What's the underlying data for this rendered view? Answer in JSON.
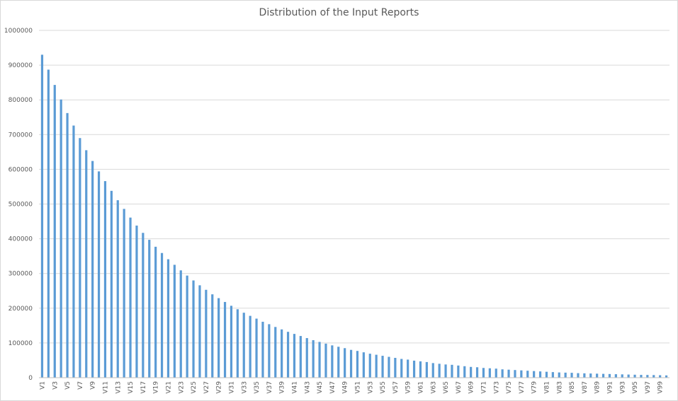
{
  "chart_data": {
    "type": "bar",
    "title": "Distribution of the Input Reports",
    "xlabel": "",
    "ylabel": "",
    "ylim": [
      0,
      1000000
    ],
    "yticks": [
      0,
      100000,
      200000,
      300000,
      400000,
      500000,
      600000,
      700000,
      800000,
      900000,
      1000000
    ],
    "grid": true,
    "legend": "none",
    "bar_color": "#5b9bd5",
    "categories": [
      "V1",
      "V2",
      "V3",
      "V4",
      "V5",
      "V6",
      "V7",
      "V8",
      "V9",
      "V10",
      "V11",
      "V12",
      "V13",
      "V14",
      "V15",
      "V16",
      "V17",
      "V18",
      "V19",
      "V20",
      "V21",
      "V22",
      "V23",
      "V24",
      "V25",
      "V26",
      "V27",
      "V28",
      "V29",
      "V30",
      "V31",
      "V32",
      "V33",
      "V34",
      "V35",
      "V36",
      "V37",
      "V38",
      "V39",
      "V40",
      "V41",
      "V42",
      "V43",
      "V44",
      "V45",
      "V46",
      "V47",
      "V48",
      "V49",
      "V50",
      "V51",
      "V52",
      "V53",
      "V54",
      "V55",
      "V56",
      "V57",
      "V58",
      "V59",
      "V60",
      "V61",
      "V62",
      "V63",
      "V64",
      "V65",
      "V66",
      "V67",
      "V68",
      "V69",
      "V70",
      "V71",
      "V72",
      "V73",
      "V74",
      "V75",
      "V76",
      "V77",
      "V78",
      "V79",
      "V80",
      "V81",
      "V82",
      "V83",
      "V84",
      "V85",
      "V86",
      "V87",
      "V88",
      "V89",
      "V90",
      "V91",
      "V92",
      "V93",
      "V94",
      "V95",
      "V96",
      "V97",
      "V98",
      "V99",
      "V100"
    ],
    "visible_tick_labels": [
      "V1",
      "V3",
      "V5",
      "V7",
      "V9",
      "V11",
      "V13",
      "V15",
      "V17",
      "V19",
      "V21",
      "V23",
      "V25",
      "V27",
      "V29",
      "V31",
      "V33",
      "V35",
      "V37",
      "V39",
      "V41",
      "V43",
      "V45",
      "V47",
      "V49",
      "V51",
      "V53",
      "V55",
      "V57",
      "V59",
      "V61",
      "V63",
      "V65",
      "V67",
      "V69",
      "V71",
      "V73",
      "V75",
      "V77",
      "V79",
      "V81",
      "V83",
      "V85",
      "V87",
      "V89",
      "V91",
      "V93",
      "V95",
      "V97",
      "V99"
    ],
    "values": [
      930000,
      887000,
      843000,
      801000,
      762000,
      726000,
      690000,
      655000,
      624000,
      594000,
      566000,
      538000,
      511000,
      486000,
      461000,
      438000,
      417000,
      397000,
      377000,
      359000,
      341000,
      325000,
      309000,
      294000,
      280000,
      266000,
      253000,
      240000,
      229000,
      218000,
      207000,
      197000,
      187000,
      178000,
      170000,
      161000,
      154000,
      146000,
      139000,
      132000,
      126000,
      120000,
      114000,
      108000,
      103000,
      98000,
      93000,
      89000,
      85000,
      80000,
      77000,
      73000,
      69000,
      66000,
      63000,
      60000,
      57000,
      54000,
      52000,
      49000,
      47000,
      45000,
      42000,
      40000,
      38000,
      37000,
      35000,
      33000,
      31000,
      30000,
      28000,
      27000,
      26000,
      24000,
      23000,
      22000,
      21000,
      20000,
      19000,
      18000,
      17000,
      16000,
      15000,
      14500,
      14000,
      13000,
      12500,
      12000,
      11500,
      11000,
      10500,
      10000,
      9500,
      9000,
      8500,
      8000,
      7800,
      7500,
      7000,
      6500
    ]
  }
}
